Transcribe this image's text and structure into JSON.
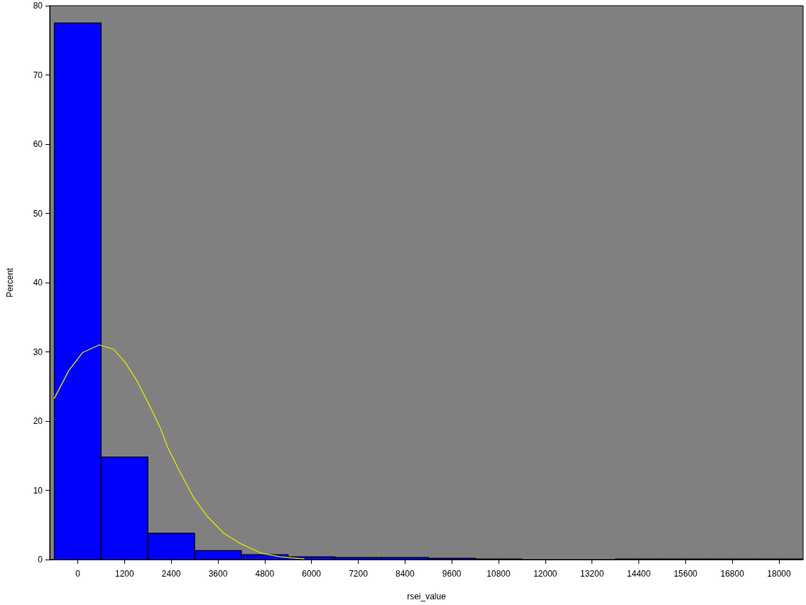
{
  "chart_data": {
    "type": "histogram",
    "xlabel": "rsei_value",
    "ylabel": "Percent",
    "bins": [
      -600,
      600,
      1800,
      3000,
      4200,
      5400,
      6600,
      7800,
      9000,
      10200,
      11400,
      12600,
      13800,
      15000,
      16200,
      17400,
      18600
    ],
    "values": [
      77.5,
      14.8,
      3.8,
      1.3,
      0.7,
      0.4,
      0.3,
      0.3,
      0.2,
      0.1,
      0,
      0,
      0.1,
      0.1,
      0.1,
      0.1
    ],
    "color": "#0000ff",
    "series": [
      {
        "type": "line",
        "color": "#e6e600",
        "x": [
          -600,
          -230,
          125,
          550,
          915,
          1215,
          1520,
          1820,
          2120,
          2300,
          2610,
          2970,
          3330,
          3750,
          4180,
          4720,
          5200,
          5810
        ],
        "values": [
          23.3,
          27.3,
          29.9,
          31.0,
          30.4,
          28.5,
          25.8,
          22.5,
          19.0,
          16.3,
          12.8,
          9.0,
          6.2,
          3.8,
          2.3,
          0.9,
          0.4,
          0.1
        ]
      }
    ],
    "xlim": [
      -720,
      18620
    ],
    "xticks": [
      0,
      1200,
      2400,
      3600,
      4800,
      6000,
      7200,
      8400,
      9600,
      10800,
      12000,
      13200,
      14400,
      15600,
      16800,
      18000
    ],
    "ylim": [
      0,
      80
    ],
    "yticks": [
      0,
      10,
      20,
      30,
      40,
      50,
      60,
      70,
      80
    ],
    "grid": false,
    "legend": false,
    "marker": "none",
    "line_style": "solid"
  }
}
